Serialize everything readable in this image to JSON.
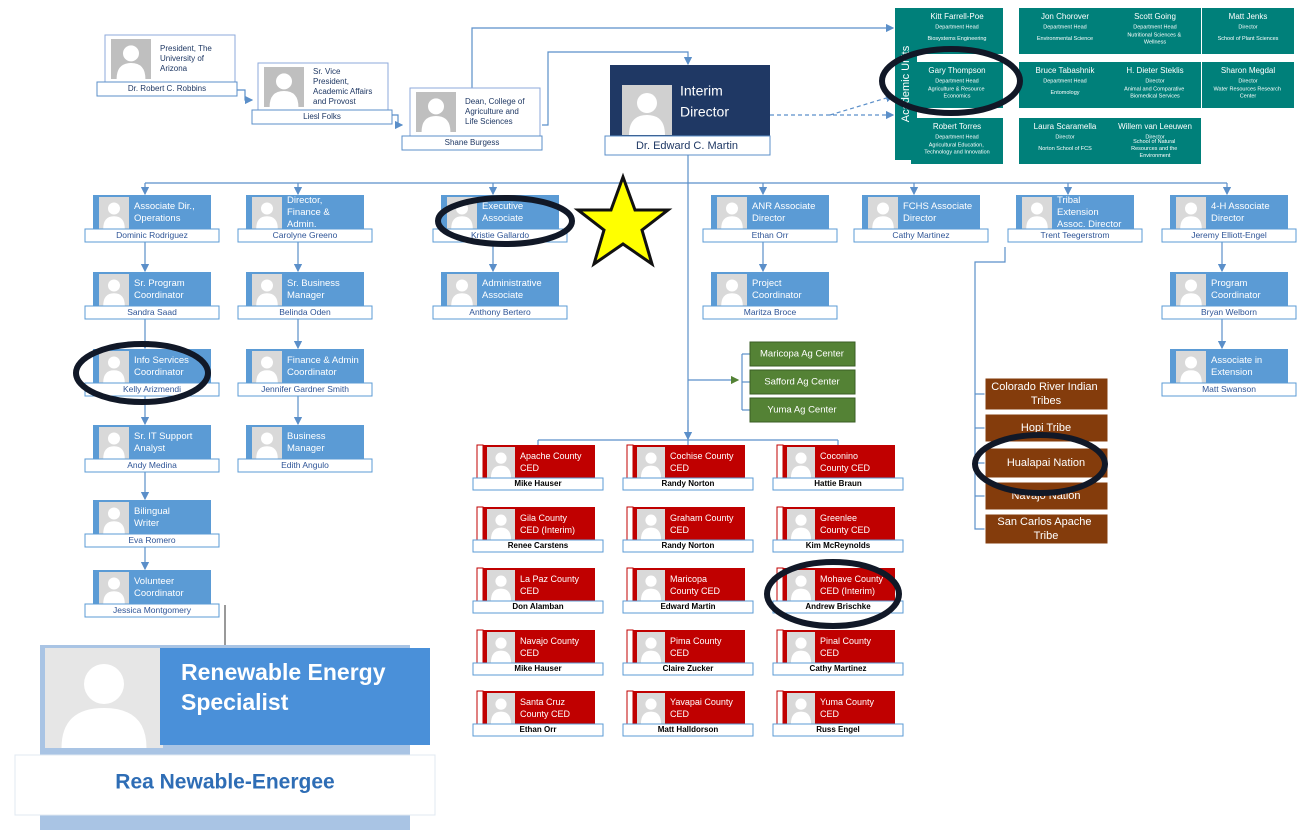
{
  "leadership": [
    {
      "title": "President, The University of Arizona",
      "name": "Dr. Robert C. Robbins"
    },
    {
      "title": "Sr. Vice President, Academic Affairs and Provost",
      "name": "Liesl Folks"
    },
    {
      "title": "Dean, College of Agriculture and Life Sciences",
      "name": "Shane Burgess"
    },
    {
      "title": "Interim Director",
      "name": "Dr. Edward C. Martin"
    }
  ],
  "academic_units": {
    "label": "Academic Units",
    "units": [
      {
        "name": "Kitt Farrell-Poe",
        "role": "Department Head",
        "unit": "Biosystems Engineering"
      },
      {
        "name": "Jon Chorover",
        "role": "Department Head",
        "unit": "Environmental Science"
      },
      {
        "name": "Scott Going",
        "role": "Department Head",
        "unit": "Nutritional Sciences & Wellness"
      },
      {
        "name": "Matt Jenks",
        "role": "Director",
        "unit": "School of Plant Sciences"
      },
      {
        "name": "Gary Thompson",
        "role": "Department Head",
        "unit": "Agriculture & Resource Economics"
      },
      {
        "name": "Bruce Tabashnik",
        "role": "Department Head",
        "unit": "Entomology"
      },
      {
        "name": "H. Dieter Steklis",
        "role": "Director",
        "unit": "Animal and Comparative Biomedical Services"
      },
      {
        "name": "Sharon Megdal",
        "role": "Director",
        "unit": "Water Resources Research Center"
      },
      {
        "name": "Robert Torres",
        "role": "Department Head",
        "unit": "Agricultural Education, Technology and Innovation"
      },
      {
        "name": "Laura Scaramella",
        "role": "Director",
        "unit": "Norton School of FCS"
      },
      {
        "name": "Willem van Leeuwen",
        "role": "Director",
        "unit": "School of Natural Resources and the Environment"
      }
    ]
  },
  "staff_columns": [
    [
      {
        "title": "Associate Dir., Operations",
        "name": "Dominic Rodriguez"
      },
      {
        "title": "Sr. Program Coordinator",
        "name": "Sandra Saad"
      },
      {
        "title": "Info Services Coordinator",
        "name": "Kelly Arizmendi"
      },
      {
        "title": "Sr. IT Support Analyst",
        "name": "Andy Medina"
      },
      {
        "title": "Bilingual Writer",
        "name": "Eva Romero"
      },
      {
        "title": "Volunteer Coordinator",
        "name": "Jessica Montgomery"
      }
    ],
    [
      {
        "title": "Director, Finance & Admin.",
        "name": "Carolyne Greeno"
      },
      {
        "title": "Sr. Business Manager",
        "name": "Belinda Oden"
      },
      {
        "title": "Finance & Admin Coordinator",
        "name": "Jennifer Gardner Smith"
      },
      {
        "title": "Business Manager",
        "name": "Edith Angulo"
      }
    ],
    [
      {
        "title": "Executive Associate",
        "name": "Kristie Gallardo"
      },
      {
        "title": "Administrative Associate",
        "name": "Anthony Bertero"
      }
    ],
    [
      {
        "title": "ANR Associate Director",
        "name": "Ethan Orr"
      },
      {
        "title": "Project Coordinator",
        "name": "Maritza Broce"
      }
    ],
    [
      {
        "title": "FCHS Associate Director",
        "name": "Cathy Martinez"
      }
    ],
    [
      {
        "title": "Tribal Extension Assoc. Director",
        "name": "Trent Teegerstrom"
      }
    ],
    [
      {
        "title": "4-H Associate Director",
        "name": "Jeremy Elliott-Engel"
      },
      {
        "title": "Program Coordinator",
        "name": "Bryan Welborn"
      },
      {
        "title": "Associate in Extension",
        "name": "Matt Swanson"
      }
    ]
  ],
  "ag_centers": [
    "Maricopa Ag Center",
    "Safford Ag Center",
    "Yuma Ag Center"
  ],
  "tribes": [
    "Colorado River Indian Tribes",
    "Hopi Tribe",
    "Hualapai Nation",
    "Navajo Nation",
    "San Carlos Apache Tribe"
  ],
  "county_offices": [
    [
      {
        "title": "Apache County CED",
        "name": "Mike Hauser"
      },
      {
        "title": "Gila County CED (Interim)",
        "name": "Renee Carstens"
      },
      {
        "title": "La Paz County CED",
        "name": "Don Alamban"
      },
      {
        "title": "Navajo County CED",
        "name": "Mike Hauser"
      },
      {
        "title": "Santa Cruz County CED",
        "name": "Ethan Orr"
      }
    ],
    [
      {
        "title": "Cochise County CED",
        "name": "Randy Norton"
      },
      {
        "title": "Graham County CED",
        "name": "Randy Norton"
      },
      {
        "title": "Maricopa County CED",
        "name": "Edward Martin"
      },
      {
        "title": "Pima County CED",
        "name": "Claire Zucker"
      },
      {
        "title": "Yavapai County CED",
        "name": "Matt Halldorson"
      }
    ],
    [
      {
        "title": "Coconino County CED",
        "name": "Hattie Braun"
      },
      {
        "title": "Greenlee County CED",
        "name": "Kim McReynolds"
      },
      {
        "title": "Mohave County CED (Interim)",
        "name": "Andrew Brischke"
      },
      {
        "title": "Pinal County CED",
        "name": "Cathy Martinez"
      },
      {
        "title": "Yuma County CED",
        "name": "Russ Engel"
      }
    ]
  ],
  "featured": {
    "title": "Renewable Energy Specialist",
    "name": "Rea Newable-Energee"
  }
}
